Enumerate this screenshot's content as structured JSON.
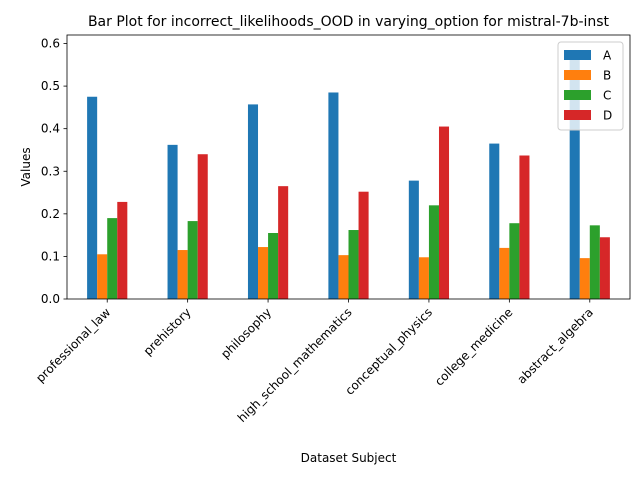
{
  "chart_data": {
    "type": "bar",
    "title": "Bar Plot for incorrect_likelihoods_OOD in varying_option for mistral-7b-inst",
    "xlabel": "Dataset Subject",
    "ylabel": "Values",
    "categories": [
      "professional_law",
      "prehistory",
      "philosophy",
      "high_school_mathematics",
      "conceptual_physics",
      "college_medicine",
      "abstract_algebra"
    ],
    "series": [
      {
        "name": "A",
        "color": "#1f77b4",
        "values": [
          0.475,
          0.362,
          0.457,
          0.485,
          0.278,
          0.365,
          0.565
        ]
      },
      {
        "name": "B",
        "color": "#ff7f0e",
        "values": [
          0.105,
          0.115,
          0.122,
          0.103,
          0.098,
          0.12,
          0.096
        ]
      },
      {
        "name": "C",
        "color": "#2ca02c",
        "values": [
          0.19,
          0.183,
          0.155,
          0.162,
          0.22,
          0.178,
          0.173
        ]
      },
      {
        "name": "D",
        "color": "#d62728",
        "values": [
          0.228,
          0.34,
          0.265,
          0.252,
          0.405,
          0.337,
          0.145
        ]
      }
    ],
    "ylim": [
      0,
      0.62
    ],
    "yticks": [
      0.0,
      0.1,
      0.2,
      0.3,
      0.4,
      0.5,
      0.6
    ],
    "ytick_labels": [
      "0.0",
      "0.1",
      "0.2",
      "0.3",
      "0.4",
      "0.5",
      "0.6"
    ],
    "grid": false,
    "legend_position": "top-right"
  }
}
